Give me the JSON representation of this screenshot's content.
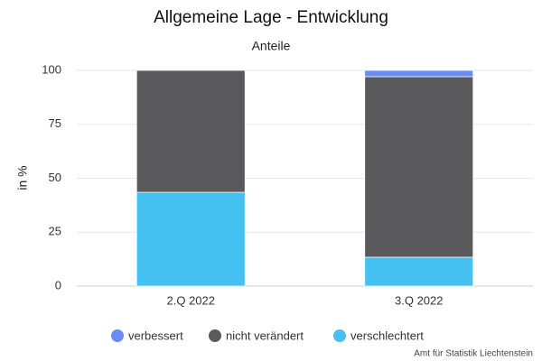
{
  "chart_data": {
    "type": "stacked_bar",
    "title": "Allgemeine Lage - Entwicklung",
    "subtitle": "Anteile",
    "y_label": "in %",
    "credit": "Amt für Statistik Liechtenstein",
    "categories": [
      "2.Q 2022",
      "3.Q 2022"
    ],
    "series": [
      {
        "name": "verbessert",
        "color": "#6b8cf7",
        "values": [
          0,
          2.9
        ]
      },
      {
        "name": "nicht verändert",
        "color": "#5a5a5c",
        "values": [
          56.5,
          83.7
        ]
      },
      {
        "name": "verschlechtert",
        "color": "#44c1f0",
        "values": [
          43.5,
          13.4
        ]
      }
    ],
    "stack_order": [
      2,
      1,
      0
    ],
    "ylim": [
      0,
      100
    ],
    "yticks": [
      0,
      25,
      50,
      75,
      100
    ],
    "grid": true,
    "legend": "bottom"
  }
}
